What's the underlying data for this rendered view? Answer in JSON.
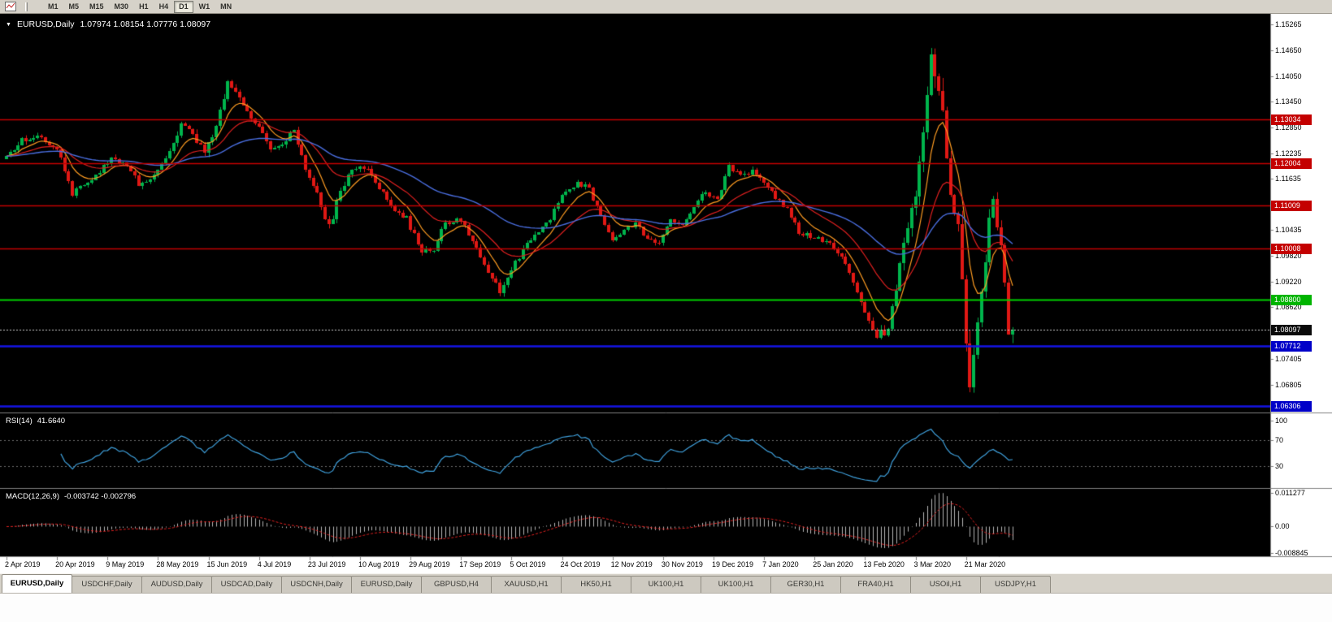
{
  "toolbar": {
    "timeframes": [
      "M1",
      "M5",
      "M15",
      "M30",
      "H1",
      "H4",
      "D1",
      "W1",
      "MN"
    ],
    "active_timeframe": "D1"
  },
  "chart": {
    "title_symbol": "EURUSD,Daily",
    "ohlc_text": "1.07974 1.08154 1.07776 1.08097",
    "type": "candlestick",
    "num_candles": 260,
    "last_candle": {
      "o": 1.07974,
      "h": 1.08154,
      "l": 1.07776,
      "c": 1.08097
    },
    "current_price": 1.08097,
    "colors": {
      "background": "#000000",
      "bull": "#00b44c",
      "bear": "#e01814",
      "ma_fast": "#ff9c22",
      "ma_med": "#e02020",
      "ma_slow": "#4a6ee0"
    },
    "price_axis": {
      "top_price": 1.15265,
      "bottom_price": 1.06205,
      "gridline_labels": [
        "1.15265",
        "1.14650",
        "1.14050",
        "1.13450",
        "1.12850",
        "1.12235",
        "1.11635",
        "1.10435",
        "1.09820",
        "1.09220",
        "1.08620",
        "1.07405",
        "1.06805"
      ],
      "badges": [
        {
          "text": "1.13034",
          "color": "#c40000"
        },
        {
          "text": "1.12004",
          "color": "#c40000"
        },
        {
          "text": "1.11009",
          "color": "#c40000"
        },
        {
          "text": "1.10008",
          "color": "#c40000"
        },
        {
          "text": "1.08800",
          "color": "#00b400"
        },
        {
          "text": "1.08097",
          "color": "#0a0a0a"
        },
        {
          "text": "1.07712",
          "color": "#0000c8"
        },
        {
          "text": "1.06306",
          "color": "#0000c8"
        }
      ]
    },
    "hlines": [
      {
        "price": 1.13034,
        "color": "#c40000",
        "width": 1.4
      },
      {
        "price": 1.12004,
        "color": "#c40000",
        "width": 1.4
      },
      {
        "price": 1.11009,
        "color": "#c40000",
        "width": 1.4
      },
      {
        "price": 1.10008,
        "color": "#c40000",
        "width": 1.4
      },
      {
        "price": 1.088,
        "color": "#00d200",
        "width": 2
      },
      {
        "price": 1.07712,
        "color": "#1414e6",
        "width": 2.4
      },
      {
        "price": 1.06306,
        "color": "#1414e6",
        "width": 2.4
      }
    ],
    "price_anchors": [
      [
        0,
        1.121,
        0.55
      ],
      [
        4,
        1.1252,
        0.55
      ],
      [
        8,
        1.1268,
        0.5
      ],
      [
        13,
        1.1238,
        0.5
      ],
      [
        17,
        1.1128,
        0.6
      ],
      [
        20,
        1.1152,
        0.5
      ],
      [
        24,
        1.1182,
        0.5
      ],
      [
        27,
        1.1212,
        0.5
      ],
      [
        31,
        1.1198,
        0.5
      ],
      [
        34,
        1.1152,
        0.55
      ],
      [
        38,
        1.1168,
        0.55
      ],
      [
        42,
        1.1232,
        0.7
      ],
      [
        45,
        1.1298,
        0.8
      ],
      [
        48,
        1.1272,
        0.7
      ],
      [
        51,
        1.1218,
        0.7
      ],
      [
        54,
        1.1288,
        0.8
      ],
      [
        57,
        1.1388,
        0.85
      ],
      [
        59,
        1.1368,
        0.7
      ],
      [
        62,
        1.1328,
        0.65
      ],
      [
        65,
        1.1282,
        0.6
      ],
      [
        68,
        1.1228,
        0.6
      ],
      [
        71,
        1.1242,
        0.55
      ],
      [
        74,
        1.1278,
        0.55
      ],
      [
        77,
        1.1178,
        0.6
      ],
      [
        80,
        1.1128,
        0.6
      ],
      [
        83,
        1.1048,
        0.7
      ],
      [
        85,
        1.1102,
        0.8
      ],
      [
        88,
        1.1178,
        0.7
      ],
      [
        91,
        1.1198,
        0.6
      ],
      [
        95,
        1.1162,
        0.55
      ],
      [
        99,
        1.1098,
        0.55
      ],
      [
        103,
        1.1072,
        0.5
      ],
      [
        107,
        1.0988,
        0.6
      ],
      [
        110,
        1.1002,
        0.55
      ],
      [
        113,
        1.1058,
        0.5
      ],
      [
        117,
        1.1068,
        0.5
      ],
      [
        120,
        1.1018,
        0.5
      ],
      [
        124,
        1.0948,
        0.55
      ],
      [
        127,
        1.0902,
        0.6
      ],
      [
        129,
        1.0928,
        0.6
      ],
      [
        132,
        1.0982,
        0.6
      ],
      [
        136,
        1.1032,
        0.55
      ],
      [
        140,
        1.1072,
        0.5
      ],
      [
        143,
        1.1122,
        0.5
      ],
      [
        147,
        1.1158,
        0.5
      ],
      [
        150,
        1.1138,
        0.45
      ],
      [
        153,
        1.1078,
        0.45
      ],
      [
        156,
        1.1022,
        0.45
      ],
      [
        159,
        1.1042,
        0.45
      ],
      [
        162,
        1.1062,
        0.45
      ],
      [
        165,
        1.1018,
        0.45
      ],
      [
        168,
        1.1008,
        0.45
      ],
      [
        171,
        1.1072,
        0.45
      ],
      [
        174,
        1.1052,
        0.45
      ],
      [
        177,
        1.1102,
        0.45
      ],
      [
        180,
        1.1132,
        0.45
      ],
      [
        183,
        1.1112,
        0.45
      ],
      [
        186,
        1.1198,
        0.5
      ],
      [
        189,
        1.1168,
        0.45
      ],
      [
        192,
        1.1182,
        0.45
      ],
      [
        195,
        1.1158,
        0.45
      ],
      [
        198,
        1.1122,
        0.45
      ],
      [
        201,
        1.1092,
        0.45
      ],
      [
        204,
        1.1038,
        0.45
      ],
      [
        208,
        1.1028,
        0.45
      ],
      [
        212,
        1.1008,
        0.45
      ],
      [
        215,
        1.0978,
        0.5
      ],
      [
        218,
        1.0922,
        0.6
      ],
      [
        221,
        1.0842,
        0.7
      ],
      [
        224,
        1.0798,
        0.7
      ],
      [
        227,
        1.0812,
        0.8
      ],
      [
        229,
        1.0902,
        1.0
      ],
      [
        231,
        1.1018,
        1.3
      ],
      [
        234,
        1.1138,
        1.5
      ],
      [
        236,
        1.1282,
        1.8
      ],
      [
        238,
        1.1458,
        1.9
      ],
      [
        239,
        1.1432,
        2.0
      ],
      [
        241,
        1.1302,
        2.1
      ],
      [
        243,
        1.1138,
        2.3
      ],
      [
        245,
        1.1038,
        2.3
      ],
      [
        246,
        1.0918,
        2.3
      ],
      [
        247,
        1.0788,
        2.3
      ],
      [
        248,
        1.0662,
        2.1
      ],
      [
        249,
        1.0728,
        1.9
      ],
      [
        251,
        1.0888,
        1.8
      ],
      [
        253,
        1.1088,
        1.7
      ],
      [
        254,
        1.1108,
        1.5
      ],
      [
        256,
        1.0992,
        1.2
      ],
      [
        258,
        1.0845,
        1.0
      ],
      [
        259,
        1.0805,
        0.8
      ]
    ],
    "date_labels": [
      {
        "i": 0,
        "text": "2 Apr 2019"
      },
      {
        "i": 13,
        "text": "20 Apr 2019"
      },
      {
        "i": 26,
        "text": "9 May 2019"
      },
      {
        "i": 39,
        "text": "28 May 2019"
      },
      {
        "i": 52,
        "text": "15 Jun 2019"
      },
      {
        "i": 65,
        "text": "4 Jul 2019"
      },
      {
        "i": 78,
        "text": "23 Jul 2019"
      },
      {
        "i": 91,
        "text": "10 Aug 2019"
      },
      {
        "i": 104,
        "text": "29 Aug 2019"
      },
      {
        "i": 117,
        "text": "17 Sep 2019"
      },
      {
        "i": 130,
        "text": "5 Oct 2019"
      },
      {
        "i": 143,
        "text": "24 Oct 2019"
      },
      {
        "i": 156,
        "text": "12 Nov 2019"
      },
      {
        "i": 169,
        "text": "30 Nov 2019"
      },
      {
        "i": 182,
        "text": "19 Dec 2019"
      },
      {
        "i": 195,
        "text": "7 Jan 2020"
      },
      {
        "i": 208,
        "text": "25 Jan 2020"
      },
      {
        "i": 221,
        "text": "13 Feb 2020"
      },
      {
        "i": 234,
        "text": "3 Mar 2020"
      },
      {
        "i": 247,
        "text": "21 Mar 2020"
      }
    ]
  },
  "rsi": {
    "name": "RSI(14)",
    "value_text": "41.6640",
    "period": 14,
    "axis_labels": [
      "100",
      "70",
      "30"
    ],
    "dash_levels": [
      70,
      30
    ],
    "line_color": "#3fa0dc"
  },
  "macd": {
    "name": "MACD(12,26,9)",
    "values_text": "-0.003742 -0.002796",
    "params": [
      12,
      26,
      9
    ],
    "axis_labels": [
      "0.011277",
      "0.00",
      "-0.008845"
    ],
    "max": 0.011277,
    "min": -0.008845,
    "histogram_color": "#b4b4b4",
    "signal_color": "#e02020"
  },
  "tabs": {
    "active_index": 0,
    "items": [
      "EURUSD,Daily",
      "USDCHF,Daily",
      "AUDUSD,Daily",
      "USDCAD,Daily",
      "USDCNH,Daily",
      "EURUSD,Daily",
      "GBPUSD,H4",
      "XAUUSD,H1",
      "HK50,H1",
      "UK100,H1",
      "UK100,H1",
      "GER30,H1",
      "FRA40,H1",
      "USOil,H1",
      "USDJPY,H1"
    ]
  }
}
